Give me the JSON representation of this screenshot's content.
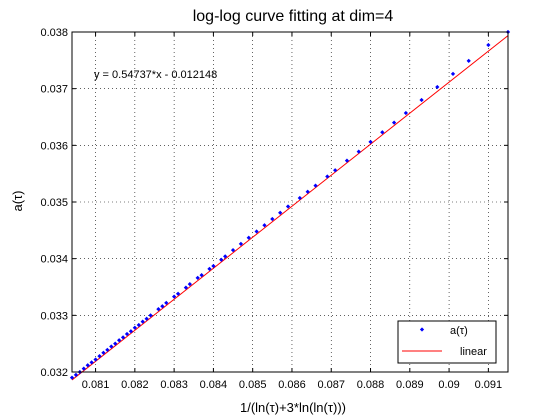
{
  "chart_data": {
    "type": "scatter",
    "title": "log-log curve fitting at dim=4",
    "xlabel": "1/(ln(τ)+3*ln(ln(τ)))",
    "ylabel": "a(τ)",
    "xlim": [
      0.0804,
      0.0915
    ],
    "ylim": [
      0.032,
      0.038
    ],
    "xticks": [
      0.081,
      0.082,
      0.083,
      0.084,
      0.085,
      0.086,
      0.087,
      0.088,
      0.089,
      0.09,
      0.091
    ],
    "xtick_labels": [
      "0.081",
      "0.082",
      "0.083",
      "0.084",
      "0.085",
      "0.086",
      "0.087",
      "0.088",
      "0.089",
      "0.09",
      "0.091"
    ],
    "yticks": [
      0.032,
      0.033,
      0.034,
      0.035,
      0.036,
      0.037,
      0.038
    ],
    "ytick_labels": [
      "0.032",
      "0.033",
      "0.034",
      "0.035",
      "0.036",
      "0.037",
      "0.038"
    ],
    "grid": true,
    "legend_position": "bottom-right",
    "annotation": "y = 0.54737*x - 0.012148",
    "series": [
      {
        "name": "a(τ)",
        "kind": "points",
        "color": "#0000ff",
        "x": [
          0.0804,
          0.0805,
          0.0806,
          0.0807,
          0.0808,
          0.0809,
          0.081,
          0.0811,
          0.0812,
          0.0813,
          0.0814,
          0.0815,
          0.0816,
          0.0817,
          0.0818,
          0.0819,
          0.082,
          0.0821,
          0.0822,
          0.0823,
          0.0824,
          0.0826,
          0.0827,
          0.0828,
          0.083,
          0.0831,
          0.0833,
          0.0834,
          0.0836,
          0.0837,
          0.0839,
          0.084,
          0.0842,
          0.0843,
          0.0845,
          0.0847,
          0.0849,
          0.0851,
          0.0853,
          0.0855,
          0.0857,
          0.0859,
          0.0862,
          0.0864,
          0.0866,
          0.0869,
          0.0871,
          0.0874,
          0.0877,
          0.088,
          0.0883,
          0.0886,
          0.0889,
          0.0893,
          0.0897,
          0.0901,
          0.0905,
          0.091,
          0.0915
        ],
        "y": [
          0.0319,
          0.03195,
          0.032,
          0.03206,
          0.03212,
          0.03217,
          0.03222,
          0.03228,
          0.03234,
          0.03239,
          0.03245,
          0.0325,
          0.03256,
          0.03261,
          0.03267,
          0.03272,
          0.03278,
          0.03283,
          0.03289,
          0.03294,
          0.033,
          0.03311,
          0.03316,
          0.03322,
          0.03333,
          0.03338,
          0.03349,
          0.03355,
          0.03366,
          0.03371,
          0.03382,
          0.03387,
          0.03398,
          0.03404,
          0.03415,
          0.03426,
          0.03437,
          0.03448,
          0.03459,
          0.0347,
          0.03481,
          0.03492,
          0.03507,
          0.03518,
          0.03529,
          0.03545,
          0.03556,
          0.03573,
          0.03589,
          0.03606,
          0.03623,
          0.0364,
          0.03657,
          0.0368,
          0.03703,
          0.03726,
          0.03749,
          0.03777,
          0.038
        ]
      },
      {
        "name": "linear",
        "kind": "line",
        "color": "#ff0000",
        "x": [
          0.0804,
          0.0915
        ],
        "y": [
          0.03186,
          0.037936
        ]
      }
    ]
  }
}
